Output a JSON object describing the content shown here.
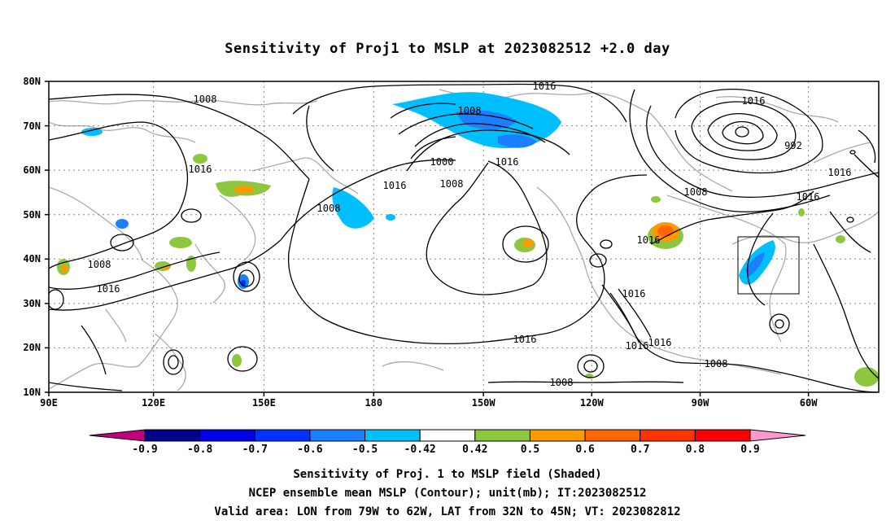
{
  "title": "Sensitivity of Proj1 to MSLP at 2023082512 +2.0 day",
  "map": {
    "lat_labels": [
      "80N",
      "70N",
      "60N",
      "50N",
      "40N",
      "30N",
      "20N",
      "10N"
    ],
    "lon_labels": [
      "90E",
      "120E",
      "150E",
      "180",
      "150W",
      "120W",
      "90W",
      "60W"
    ],
    "extent": {
      "lon_from": "90E",
      "lon_to": "40W",
      "lat_from": "10N",
      "lat_to": "80N"
    },
    "gridlines": "dotted",
    "coastlines": "gray"
  },
  "contour_labels": [
    "1016",
    "1008",
    "1000",
    "1016",
    "992",
    "1016",
    "1016",
    "1016",
    "1016",
    "1008",
    "1016",
    "1008",
    "1008",
    "1016",
    "1016",
    "1008",
    "1016",
    "1016",
    "1016",
    "1008",
    "1008",
    "1008"
  ],
  "colorbar": {
    "labels": [
      "-0.9",
      "-0.8",
      "-0.7",
      "-0.6",
      "-0.5",
      "-0.42",
      "0.42",
      "0.5",
      "0.6",
      "0.7",
      "0.8",
      "0.9"
    ],
    "colors": [
      "#c0007f",
      "#00008b",
      "#0000e6",
      "#0033ff",
      "#1a80ff",
      "#00bfff",
      "#ffffff",
      "#8dc63f",
      "#ff9900",
      "#ff6600",
      "#ff3300",
      "#ff0000",
      "#ff99cc"
    ]
  },
  "caption": {
    "line1": "Sensitivity of Proj. 1 to MSLP field (Shaded)",
    "line2": "NCEP ensemble mean MSLP (Contour); unit(mb); IT:2023082512",
    "line3": "Valid area: LON from 79W to 62W, LAT from 32N to 45N; VT: 2023082812"
  }
}
